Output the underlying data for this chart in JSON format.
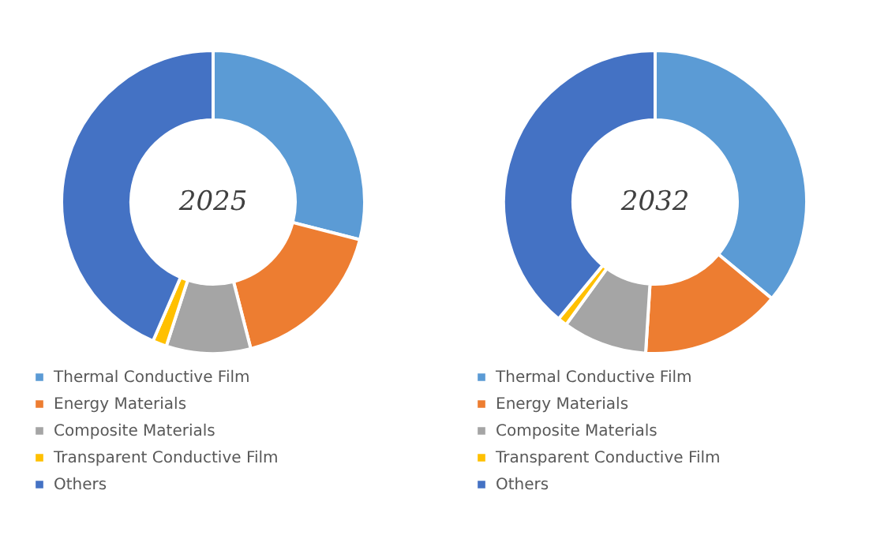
{
  "chart_data": [
    {
      "type": "donut",
      "title": "2025",
      "categories": [
        "Thermal Conductive Film",
        "Energy Materials",
        "Composite Materials",
        "Transparent Conductive Film",
        "Others"
      ],
      "values": [
        29,
        17,
        9,
        1.5,
        43.5
      ],
      "colors": [
        "#5b9bd5",
        "#ed7d31",
        "#a5a5a5",
        "#ffc000",
        "#4472c4"
      ],
      "legend": "bottom"
    },
    {
      "type": "donut",
      "title": "2032",
      "categories": [
        "Thermal Conductive Film",
        "Energy Materials",
        "Composite Materials",
        "Transparent Conductive Film",
        "Others"
      ],
      "values": [
        36,
        15,
        9,
        1,
        39
      ],
      "colors": [
        "#5b9bd5",
        "#ed7d31",
        "#a5a5a5",
        "#ffc000",
        "#4472c4"
      ],
      "legend": "bottom"
    }
  ]
}
